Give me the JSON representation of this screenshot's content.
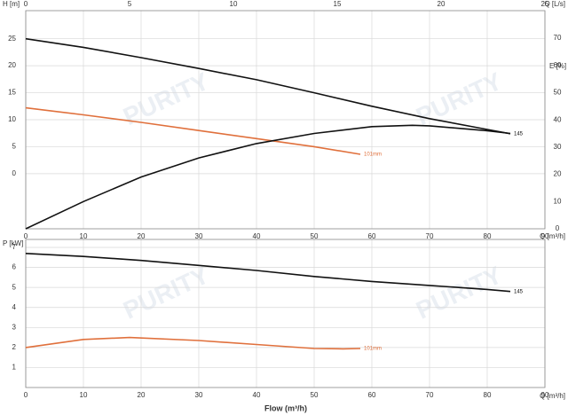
{
  "chart_data": [
    {
      "type": "line",
      "watermark": "PURITY",
      "xlabel": "Q [m³/h]",
      "x2label": "Q [L/s]",
      "ylabel": "H [m]",
      "y2label": "E [%]",
      "xlim": [
        0,
        90
      ],
      "xticks": [
        0,
        10,
        20,
        30,
        40,
        50,
        60,
        70,
        80,
        90
      ],
      "x2lim": [
        0,
        25
      ],
      "x2ticks": [
        0,
        5,
        10,
        15,
        20,
        25
      ],
      "ylim": [
        -10.2,
        30.2
      ],
      "yticks": [
        0,
        5,
        10,
        15,
        20,
        25
      ],
      "y2lim": [
        0,
        80.1
      ],
      "y2ticks": [
        0,
        10,
        20,
        30,
        40,
        50,
        60,
        70
      ],
      "grid": true,
      "series": [
        {
          "name": "145",
          "color": "#111111",
          "x": [
            0,
            10,
            20,
            30,
            40,
            50,
            60,
            70,
            80,
            84
          ],
          "values": [
            25,
            23.4,
            21.5,
            19.5,
            17.4,
            15.0,
            12.5,
            10.2,
            8.2,
            7.4
          ]
        },
        {
          "name": "101mm",
          "color": "#e0703c",
          "x": [
            0,
            10,
            20,
            30,
            40,
            50,
            58
          ],
          "values": [
            12.2,
            10.9,
            9.5,
            8.0,
            6.5,
            5.0,
            3.6
          ]
        },
        {
          "color": "#111111",
          "axis": "y2",
          "x": [
            0,
            10,
            20,
            30,
            40,
            50,
            60,
            67,
            70,
            80,
            84
          ],
          "values": [
            0,
            10,
            19,
            26,
            31.3,
            35,
            37.5,
            38,
            37.8,
            36,
            35
          ]
        }
      ]
    },
    {
      "type": "line",
      "watermark": "PURITY",
      "xlabel": "Flow (m³/h)",
      "x2label": "Q [m³/h]",
      "ylabel": "P [kW]",
      "xlim": [
        0,
        90
      ],
      "xticks": [
        0,
        10,
        20,
        30,
        40,
        50,
        60,
        70,
        80,
        90
      ],
      "ylim": [
        0,
        7.4
      ],
      "yticks": [
        1,
        2,
        3,
        4,
        5,
        6,
        7
      ],
      "grid": true,
      "series": [
        {
          "name": "145",
          "color": "#111111",
          "x": [
            0,
            10,
            20,
            30,
            40,
            50,
            60,
            70,
            80,
            84
          ],
          "values": [
            6.7,
            6.55,
            6.35,
            6.1,
            5.85,
            5.55,
            5.3,
            5.1,
            4.9,
            4.8
          ]
        },
        {
          "name": "101mm",
          "color": "#e0703c",
          "x": [
            0,
            10,
            18,
            30,
            40,
            50,
            55,
            58
          ],
          "values": [
            2.0,
            2.4,
            2.5,
            2.35,
            2.15,
            1.95,
            1.93,
            1.95
          ]
        }
      ]
    }
  ]
}
